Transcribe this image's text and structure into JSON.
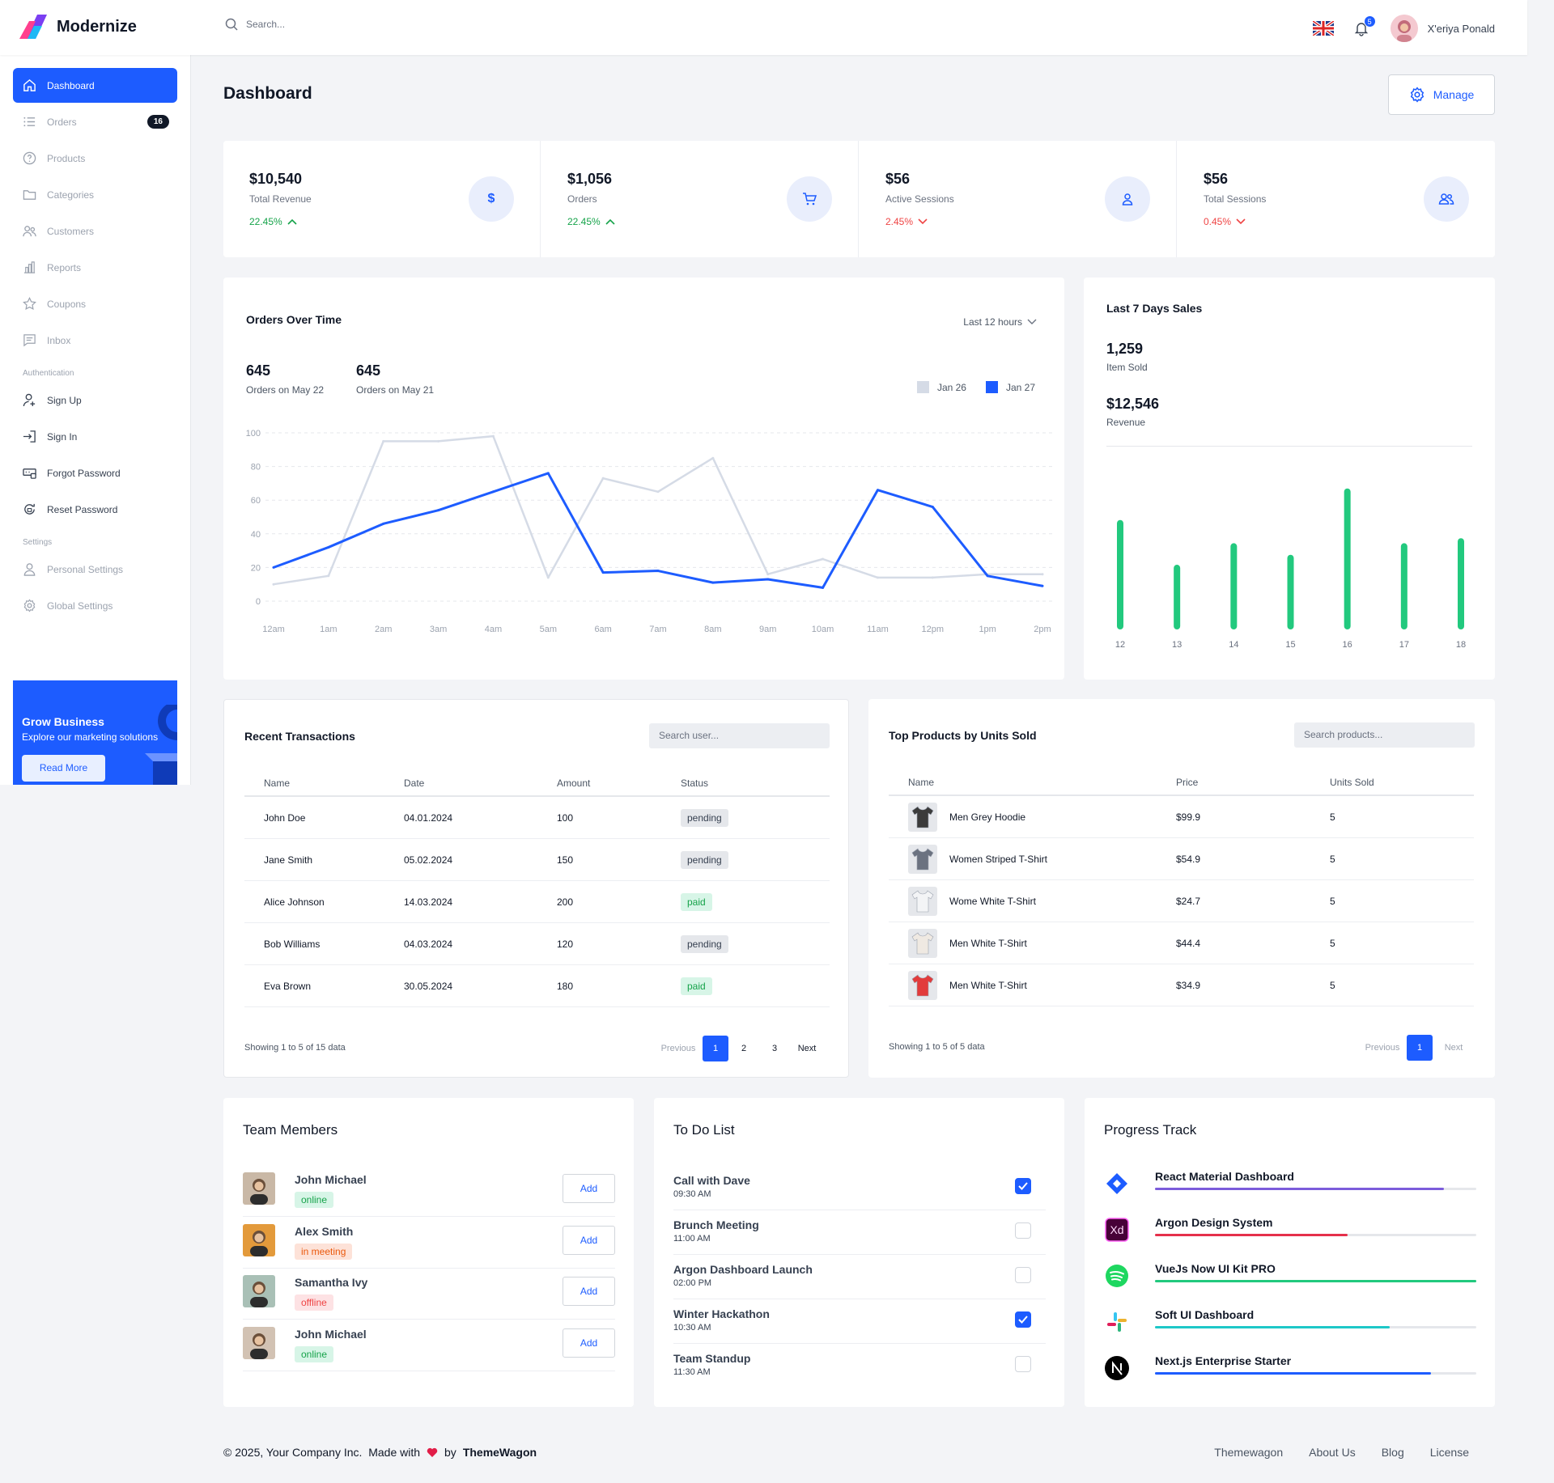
{
  "brand": {
    "name": "Modernize"
  },
  "topbar": {
    "search_placeholder": "Search...",
    "notif_count": "5",
    "user_name": "X'eriya Ponald"
  },
  "sidebar": {
    "items": [
      {
        "label": "Dashboard"
      },
      {
        "label": "Orders",
        "count": "16"
      },
      {
        "label": "Products"
      },
      {
        "label": "Categories"
      },
      {
        "label": "Customers"
      },
      {
        "label": "Reports"
      },
      {
        "label": "Coupons"
      },
      {
        "label": "Inbox"
      }
    ],
    "auth_title": "Authentication",
    "auth_items": [
      {
        "label": "Sign Up"
      },
      {
        "label": "Sign In"
      },
      {
        "label": "Forgot Password"
      },
      {
        "label": "Reset Password"
      }
    ],
    "settings_title": "Settings",
    "settings_items": [
      {
        "label": "Personal Settings"
      },
      {
        "label": "Global Settings"
      }
    ],
    "promo": {
      "title": "Grow Business",
      "text": "Explore our marketing solutions",
      "button": "Read More"
    }
  },
  "page": {
    "title": "Dashboard",
    "manage_label": "Manage"
  },
  "stats": [
    {
      "value": "$10,540",
      "label": "Total Revenue",
      "change": "22.45%",
      "trend": "up",
      "icon": "dollar-icon"
    },
    {
      "value": "$1,056",
      "label": "Orders",
      "change": "22.45%",
      "trend": "up",
      "icon": "cart-icon"
    },
    {
      "value": "$56",
      "label": "Active Sessions",
      "change": "2.45%",
      "trend": "down",
      "icon": "user-icon"
    },
    {
      "value": "$56",
      "label": "Total Sessions",
      "change": "0.45%",
      "trend": "down",
      "icon": "users-icon"
    }
  ],
  "orders_chart": {
    "title": "Orders Over Time",
    "range_label": "Last 12 hours",
    "summary": [
      {
        "value": "645",
        "label": "Orders on May 22"
      },
      {
        "value": "645",
        "label": "Orders on May 21"
      }
    ]
  },
  "sales_card": {
    "title": "Last 7 Days Sales",
    "items_value": "1,259",
    "items_label": "Item Sold",
    "revenue_value": "$12,546",
    "revenue_label": "Revenue"
  },
  "chart_data": [
    {
      "type": "line",
      "title": "Orders Over Time",
      "x": [
        "12am",
        "1am",
        "2am",
        "3am",
        "4am",
        "5am",
        "6am",
        "7am",
        "8am",
        "9am",
        "10am",
        "11am",
        "12pm",
        "1pm",
        "2pm"
      ],
      "ylim": [
        0,
        100
      ],
      "yticks": [
        0,
        20,
        40,
        60,
        80,
        100
      ],
      "series": [
        {
          "name": "Jan 26",
          "color": "#d5dbe6",
          "values": [
            10,
            15,
            95,
            95,
            98,
            14,
            73,
            65,
            85,
            16,
            25,
            14,
            14,
            16,
            16
          ]
        },
        {
          "name": "Jan 27",
          "color": "#1d5cff",
          "values": [
            20,
            32,
            46,
            54,
            65,
            76,
            17,
            18,
            11,
            13,
            8,
            66,
            56,
            15,
            9
          ]
        }
      ]
    },
    {
      "type": "bar",
      "title": "Last 7 Days Sales",
      "categories": [
        "12",
        "13",
        "14",
        "15",
        "16",
        "17",
        "18"
      ],
      "values": [
        66,
        39,
        52,
        45,
        85,
        52,
        55
      ],
      "ylim": [
        0,
        100
      ],
      "color": "#22c97e"
    }
  ],
  "transactions": {
    "title": "Recent Transactions",
    "search_placeholder": "Search user...",
    "columns": [
      "Name",
      "Date",
      "Amount",
      "Status"
    ],
    "rows": [
      {
        "name": "John Doe",
        "date": "04.01.2024",
        "amount": "100",
        "status": "pending"
      },
      {
        "name": "Jane Smith",
        "date": "05.02.2024",
        "amount": "150",
        "status": "pending"
      },
      {
        "name": "Alice Johnson",
        "date": "14.03.2024",
        "amount": "200",
        "status": "paid"
      },
      {
        "name": "Bob Williams",
        "date": "04.03.2024",
        "amount": "120",
        "status": "pending"
      },
      {
        "name": "Eva Brown",
        "date": "30.05.2024",
        "amount": "180",
        "status": "paid"
      }
    ],
    "showing": "Showing 1 to 5 of 15 data",
    "pager": {
      "prev": "Previous",
      "pages": [
        "1",
        "2",
        "3"
      ],
      "next": "Next"
    }
  },
  "products": {
    "title": "Top Products by Units Sold",
    "search_placeholder": "Search products...",
    "columns": [
      "Name",
      "Price",
      "Units Sold"
    ],
    "rows": [
      {
        "name": "Men Grey Hoodie",
        "price": "$99.9",
        "units": "5",
        "color": "#3b3b3b"
      },
      {
        "name": "Women Striped T-Shirt",
        "price": "$54.9",
        "units": "5",
        "color": "#6b7280"
      },
      {
        "name": "Wome White T-Shirt",
        "price": "$24.7",
        "units": "5",
        "color": "#f3f4f6"
      },
      {
        "name": "Men White T-Shirt",
        "price": "$44.4",
        "units": "5",
        "color": "#efe9e2"
      },
      {
        "name": "Men White T-Shirt",
        "price": "$34.9",
        "units": "5",
        "color": "#e23b3b"
      }
    ],
    "showing": "Showing 1 to 5 of 5 data",
    "pager": {
      "prev": "Previous",
      "page": "1",
      "next": "Next"
    }
  },
  "team": {
    "title": "Team Members",
    "add_label": "Add",
    "members": [
      {
        "name": "John Michael",
        "status": "online",
        "kind": "online",
        "color": "#c9b8a6"
      },
      {
        "name": "Alex Smith",
        "status": "in meeting",
        "kind": "meeting",
        "color": "#e39a3b"
      },
      {
        "name": "Samantha Ivy",
        "status": "offline",
        "kind": "offline",
        "color": "#a9c0b6"
      },
      {
        "name": "John Michael",
        "status": "online",
        "kind": "online",
        "color": "#d2c2b3"
      }
    ]
  },
  "todo": {
    "title": "To Do List",
    "items": [
      {
        "title": "Call with Dave",
        "time": "09:30 AM",
        "done": true
      },
      {
        "title": "Brunch Meeting",
        "time": "11:00 AM",
        "done": false
      },
      {
        "title": "Argon Dashboard Launch",
        "time": "02:00 PM",
        "done": false
      },
      {
        "title": "Winter Hackathon",
        "time": "10:30 AM",
        "done": true
      },
      {
        "title": "Team Standup",
        "time": "11:30 AM",
        "done": false
      }
    ]
  },
  "progress": {
    "title": "Progress Track",
    "items": [
      {
        "name": "React Material Dashboard",
        "value": 0.9,
        "color": "#7c5cdb",
        "icon": "jira-icon"
      },
      {
        "name": "Argon Design System",
        "value": 0.6,
        "color": "#e5304b",
        "icon": "xd-icon"
      },
      {
        "name": "VueJs Now UI Kit PRO",
        "value": 1.0,
        "color": "#22c97e",
        "icon": "spotify-icon"
      },
      {
        "name": "Soft UI Dashboard",
        "value": 0.73,
        "color": "#1ec8c8",
        "icon": "slack-icon"
      },
      {
        "name": "Next.js Enterprise Starter",
        "value": 0.86,
        "color": "#1d5cff",
        "icon": "nextjs-icon"
      }
    ]
  },
  "footer": {
    "copyright": "© 2025, Your Company Inc.  Made with",
    "by": "by",
    "company": "ThemeWagon",
    "links": [
      "Themewagon",
      "About Us",
      "Blog",
      "License"
    ]
  }
}
